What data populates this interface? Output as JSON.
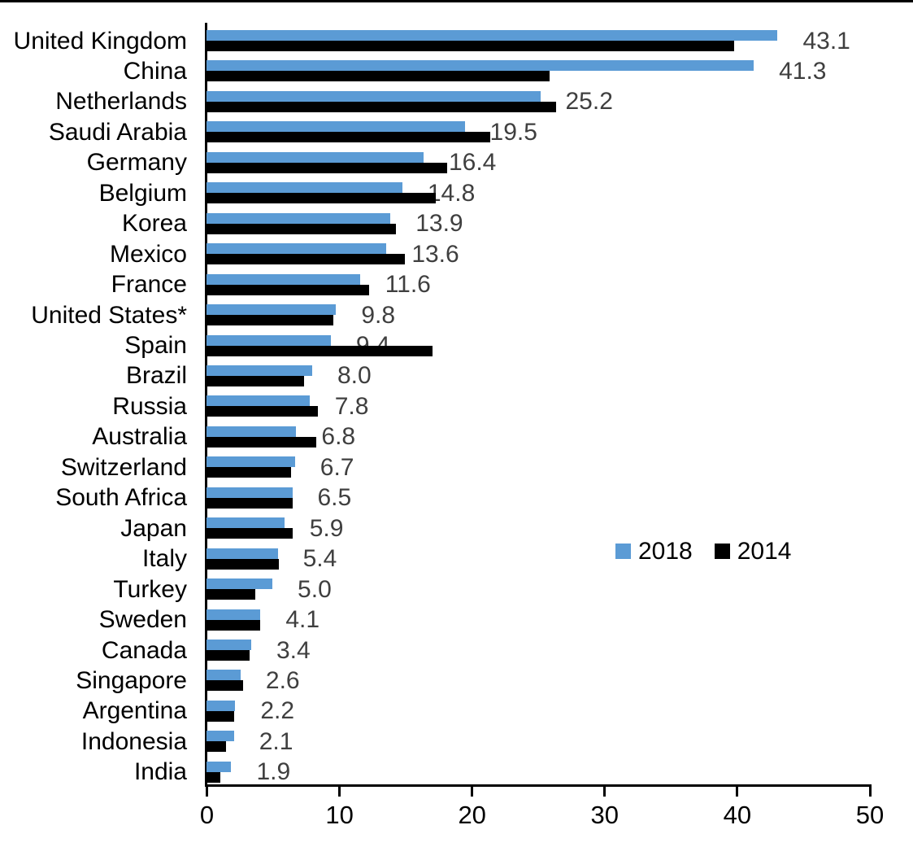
{
  "chart_data": {
    "type": "bar",
    "orientation": "horizontal",
    "title": "",
    "xlabel": "",
    "ylabel": "",
    "xlim": [
      0,
      50
    ],
    "x_ticks": [
      0,
      10,
      20,
      30,
      40,
      50
    ],
    "x_tick_labels": [
      "0",
      "10",
      "20",
      "30",
      "40",
      "50"
    ],
    "grid": false,
    "legend_position": "middle-right",
    "categories": [
      "United Kingdom",
      "China",
      "Netherlands",
      "Saudi Arabia",
      "Germany",
      "Belgium",
      "Korea",
      "Mexico",
      "France",
      "United States*",
      "Spain",
      "Brazil",
      "Russia",
      "Australia",
      "Switzerland",
      "South Africa",
      "Japan",
      "Italy",
      "Turkey",
      "Sweden",
      "Canada",
      "Singapore",
      "Argentina",
      "Indonesia",
      "India"
    ],
    "series": [
      {
        "name": "2018",
        "color": "#5B9BD5",
        "values": [
          43.1,
          41.3,
          25.2,
          19.5,
          16.4,
          14.8,
          13.9,
          13.6,
          11.6,
          9.8,
          9.4,
          8.0,
          7.8,
          6.8,
          6.7,
          6.5,
          5.9,
          5.4,
          5.0,
          4.1,
          3.4,
          2.6,
          2.2,
          2.1,
          1.9
        ]
      },
      {
        "name": "2014",
        "color": "#000000",
        "values": [
          39.8,
          25.9,
          26.4,
          21.4,
          18.2,
          17.3,
          14.3,
          15.0,
          12.3,
          9.6,
          17.1,
          7.4,
          8.4,
          8.3,
          6.4,
          6.5,
          6.5,
          5.5,
          3.7,
          4.1,
          3.3,
          2.8,
          2.1,
          1.5,
          1.1
        ]
      }
    ],
    "value_labels": [
      "43.1",
      "41.3",
      "25.2",
      "19.5",
      "16.4",
      "14.8",
      "13.9",
      "13.6",
      "11.6",
      "9.8",
      "9.4",
      "8.0",
      "7.8",
      "6.8",
      "6.7",
      "6.5",
      "5.9",
      "5.4",
      "5.0",
      "4.1",
      "3.4",
      "2.6",
      "2.2",
      "2.1",
      "1.9"
    ],
    "value_label_series": "2018",
    "value_label_color": "#3f3f3f"
  },
  "legend": {
    "items": [
      {
        "label": "2018",
        "color": "#5B9BD5"
      },
      {
        "label": "2014",
        "color": "#000000"
      }
    ]
  }
}
